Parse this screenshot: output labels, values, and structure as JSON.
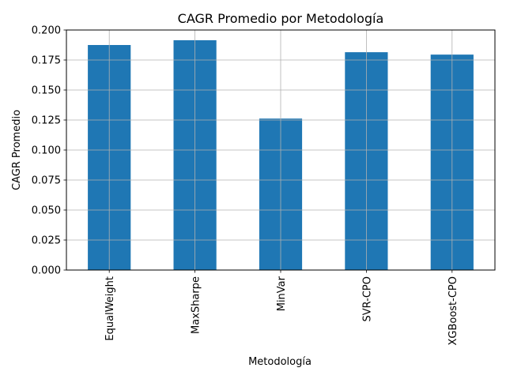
{
  "chart_data": {
    "type": "bar",
    "title": "CAGR Promedio por Metodología",
    "xlabel": "Metodología",
    "ylabel": "CAGR Promedio",
    "categories": [
      "EqualWeight",
      "MaxSharpe",
      "MinVar",
      "SVR-CPO",
      "XGBoost-CPO"
    ],
    "values": [
      0.1875,
      0.1915,
      0.1262,
      0.1815,
      0.1795
    ],
    "ylim": [
      0,
      0.2
    ],
    "yticks": [
      "0.000",
      "0.025",
      "0.050",
      "0.075",
      "0.100",
      "0.125",
      "0.150",
      "0.175",
      "0.200"
    ],
    "grid": true,
    "bar_color": "#1f77b4",
    "grid_color": "#b0b0b0"
  }
}
